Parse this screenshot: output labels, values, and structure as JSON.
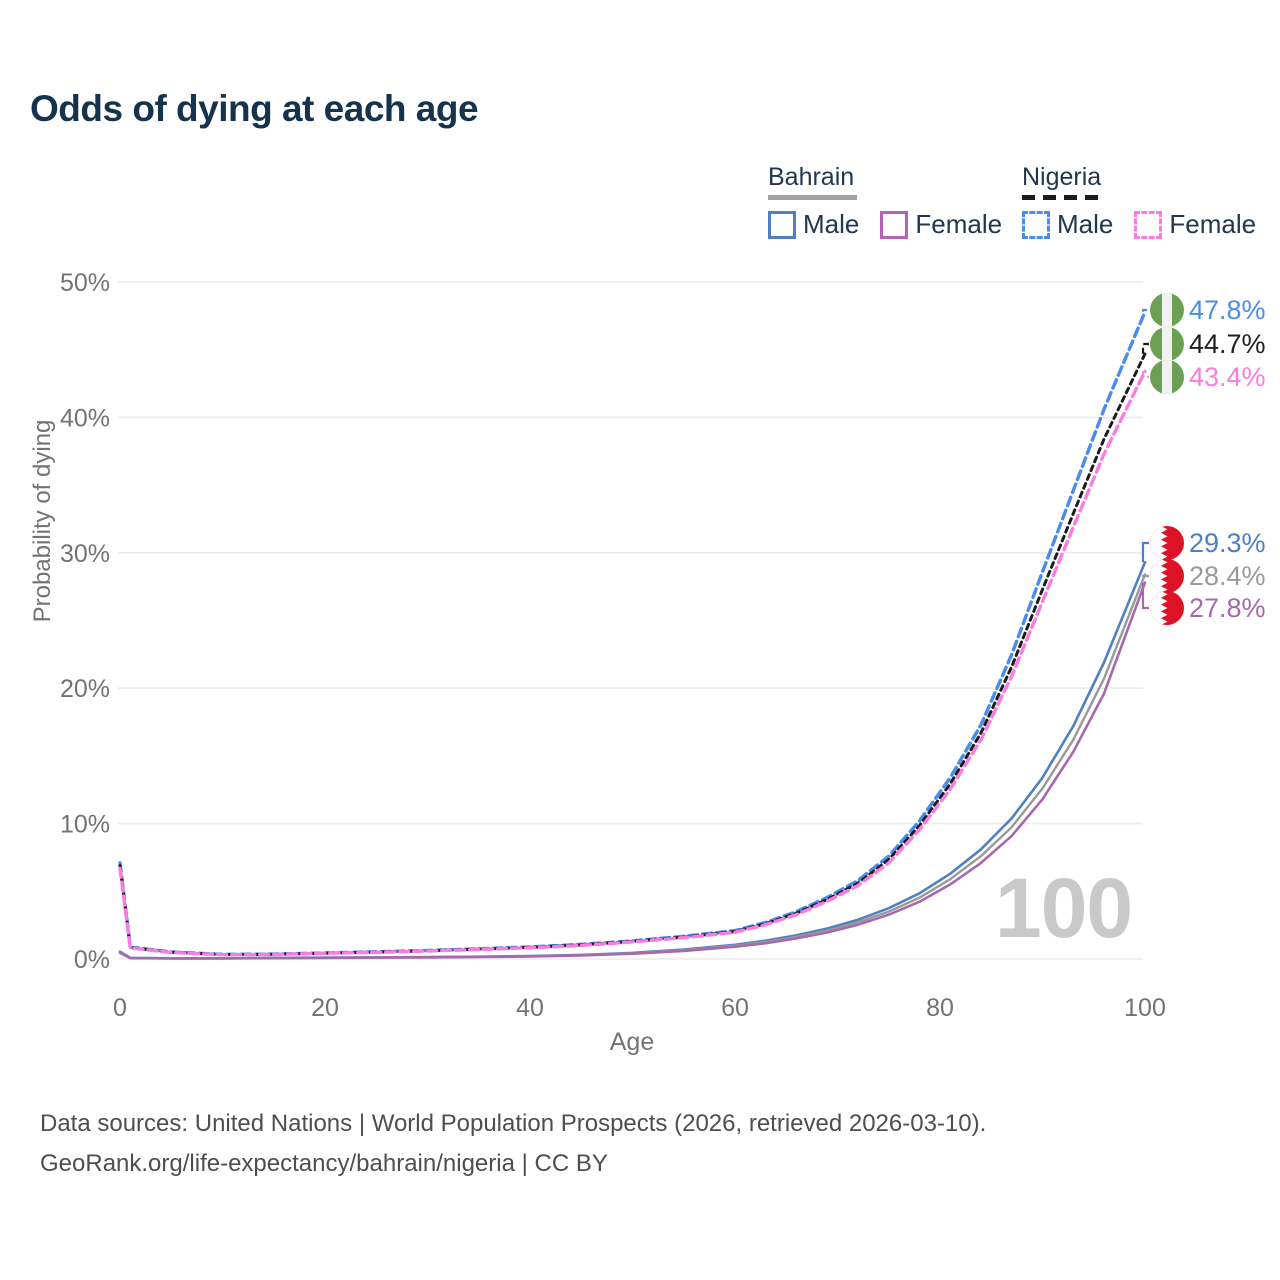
{
  "title": "Odds of dying at each age",
  "legend": {
    "groups": [
      {
        "name": "Bahrain",
        "line_style": "solid",
        "line_color": "#a3a3a3",
        "items": [
          {
            "label": "Male",
            "color": "#5080c2",
            "dashed": false
          },
          {
            "label": "Female",
            "color": "#b264b2",
            "dashed": false
          }
        ]
      },
      {
        "name": "Nigeria",
        "line_style": "dashed",
        "line_color": "#1c1c1c",
        "items": [
          {
            "label": "Male",
            "color": "#4a8ceb",
            "dashed": true
          },
          {
            "label": "Female",
            "color": "#fb7ce1",
            "dashed": true
          }
        ]
      }
    ]
  },
  "chart_data": {
    "type": "line",
    "title": "Odds of dying at each age",
    "xlabel": "Age",
    "ylabel": "Probability of dying",
    "xlim": [
      0,
      100
    ],
    "ylim": [
      0,
      50
    ],
    "grid": "horizontal",
    "legend_position": "top-right",
    "watermark": "100",
    "x_ticks": [
      0,
      20,
      40,
      60,
      80,
      100
    ],
    "y_ticks": [
      {
        "value": 0,
        "label": "0%"
      },
      {
        "value": 10,
        "label": "10%"
      },
      {
        "value": 20,
        "label": "20%"
      },
      {
        "value": 30,
        "label": "30%"
      },
      {
        "value": 40,
        "label": "40%"
      },
      {
        "value": 50,
        "label": "50%"
      }
    ],
    "x": [
      0,
      1,
      5,
      10,
      15,
      20,
      25,
      30,
      35,
      40,
      45,
      50,
      55,
      60,
      63,
      66,
      69,
      72,
      75,
      78,
      81,
      84,
      87,
      90,
      93,
      96,
      100
    ],
    "series": [
      {
        "id": "bahrain-male",
        "country": "Bahrain",
        "sex": "Male",
        "color": "#5080c2",
        "dash": null,
        "width": 2.6,
        "values": [
          0.55,
          0.08,
          0.05,
          0.05,
          0.08,
          0.1,
          0.12,
          0.14,
          0.17,
          0.22,
          0.3,
          0.45,
          0.7,
          1.05,
          1.35,
          1.75,
          2.25,
          2.9,
          3.75,
          4.85,
          6.3,
          8.1,
          10.4,
          13.4,
          17.2,
          21.9,
          29.3
        ]
      },
      {
        "id": "bahrain-both-sexes",
        "country": "Bahrain",
        "sex": "Both sexes",
        "color": "#999999",
        "dash": null,
        "width": 2.4,
        "values": [
          0.5,
          0.075,
          0.046,
          0.046,
          0.072,
          0.09,
          0.11,
          0.13,
          0.16,
          0.2,
          0.28,
          0.42,
          0.65,
          0.98,
          1.26,
          1.63,
          2.1,
          2.71,
          3.5,
          4.53,
          5.9,
          7.6,
          9.75,
          12.6,
          16.2,
          20.7,
          28.4
        ]
      },
      {
        "id": "bahrain-female",
        "country": "Bahrain",
        "sex": "Female",
        "color": "#a768ac",
        "dash": null,
        "width": 2.6,
        "values": [
          0.46,
          0.07,
          0.042,
          0.042,
          0.065,
          0.082,
          0.1,
          0.12,
          0.15,
          0.185,
          0.26,
          0.39,
          0.6,
          0.91,
          1.17,
          1.52,
          1.96,
          2.53,
          3.27,
          4.23,
          5.51,
          7.1,
          9.1,
          11.8,
          15.3,
          19.6,
          27.8
        ]
      },
      {
        "id": "nigeria-male",
        "country": "Nigeria",
        "sex": "Male",
        "color": "#4a8ceb",
        "dash": "9 5",
        "width": 3.4,
        "values": [
          7.1,
          0.88,
          0.52,
          0.34,
          0.36,
          0.45,
          0.53,
          0.63,
          0.75,
          0.89,
          1.08,
          1.34,
          1.68,
          2.1,
          2.7,
          3.5,
          4.55,
          5.8,
          7.6,
          10.2,
          13.4,
          17.3,
          22.5,
          28.6,
          34.6,
          40.6,
          47.8
        ]
      },
      {
        "id": "nigeria-both-sexes",
        "country": "Nigeria",
        "sex": "Both sexes",
        "color": "#1c1c1c",
        "dash": "5 4.5",
        "width": 3.0,
        "values": [
          6.9,
          0.85,
          0.5,
          0.33,
          0.35,
          0.43,
          0.51,
          0.61,
          0.72,
          0.86,
          1.04,
          1.3,
          1.62,
          2.03,
          2.61,
          3.38,
          4.4,
          5.6,
          7.35,
          9.85,
          12.95,
          16.7,
          21.6,
          27.3,
          32.9,
          38.4,
          44.7
        ]
      },
      {
        "id": "nigeria-female",
        "country": "Nigeria",
        "sex": "Female",
        "color": "#fb7ce1",
        "dash": "9 5",
        "width": 3.4,
        "values": [
          6.7,
          0.82,
          0.48,
          0.32,
          0.34,
          0.42,
          0.49,
          0.59,
          0.7,
          0.83,
          1.0,
          1.26,
          1.57,
          1.97,
          2.53,
          3.28,
          4.27,
          5.43,
          7.1,
          9.55,
          12.55,
          16.2,
          20.9,
          26.4,
          31.9,
          37.3,
          43.4
        ]
      }
    ],
    "end_labels": [
      {
        "text": "47.8%",
        "value": 47.8,
        "color": "#4a8ceb",
        "flag": "nigeria",
        "series": "nigeria-male"
      },
      {
        "text": "44.7%",
        "value": 44.7,
        "color": "#1f1f1f",
        "flag": "nigeria",
        "series": "nigeria-both-sexes"
      },
      {
        "text": "43.4%",
        "value": 43.4,
        "color": "#fb7ce1",
        "flag": "nigeria",
        "series": "nigeria-female"
      },
      {
        "text": "29.3%",
        "value": 29.3,
        "color": "#4d7fc4",
        "flag": "bahrain",
        "series": "bahrain-male"
      },
      {
        "text": "28.4%",
        "value": 28.4,
        "color": "#9a9a9a",
        "flag": "bahrain",
        "series": "bahrain-both-sexes"
      },
      {
        "text": "27.8%",
        "value": 27.8,
        "color": "#a768ac",
        "flag": "bahrain",
        "series": "bahrain-female"
      }
    ]
  },
  "footer": {
    "line1": "Data sources: United Nations | World Population Prospects (2026, retrieved 2026-03-10).",
    "line2": "GeoRank.org/life-expectancy/bahrain/nigeria | CC BY"
  }
}
